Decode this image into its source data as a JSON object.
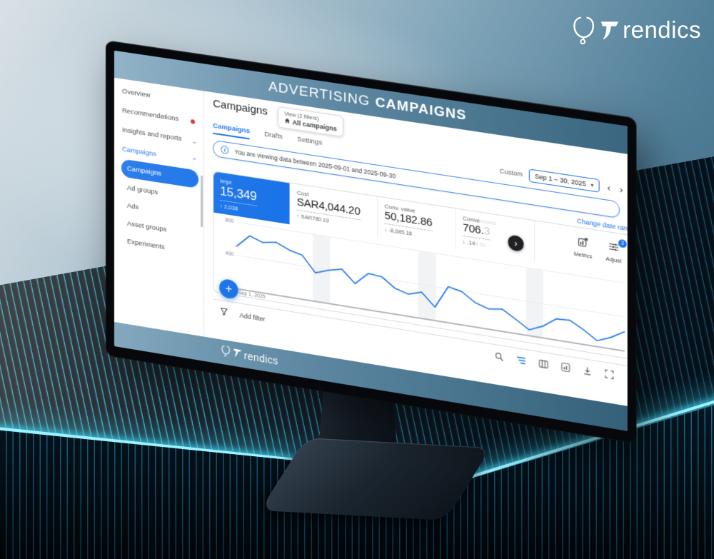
{
  "brand": {
    "name": "Trendics",
    "t": "T",
    "rest": "rendics"
  },
  "banner": {
    "title_light": "ADVERTISING",
    "title_bold": "CAMPAIGNS"
  },
  "sidebar": {
    "items": [
      {
        "label": "Overview"
      },
      {
        "label": "Recommendations"
      },
      {
        "label": "Insights and reports"
      },
      {
        "label": "Campaigns"
      }
    ],
    "subitems": [
      {
        "label": "Campaigns"
      },
      {
        "label": "Ad groups"
      },
      {
        "label": "Ads"
      },
      {
        "label": "Asset groups"
      },
      {
        "label": "Experiments"
      }
    ]
  },
  "main": {
    "page_title": "Campaigns",
    "view_selector": {
      "caption": "View (2 filters)",
      "value": "All campaigns"
    },
    "tabs": [
      {
        "label": "Campaigns"
      },
      {
        "label": "Drafts"
      },
      {
        "label": "Settings"
      }
    ],
    "date_controls": {
      "mode": "Custom",
      "range": "Sep 1 – 30, 2025"
    },
    "info_banner": "You are viewing data between 2025-09-01 and 2025-09-30",
    "change_date_link": "Change date range",
    "scorecards": {
      "impressions": {
        "label": "Impr.",
        "value": "15,349",
        "delta": "↑ 2,038"
      },
      "cost": {
        "label": "Cost",
        "value": "SAR4,044.20",
        "delta": "↑ SAR780.19"
      },
      "conv_value": {
        "label": "Conv. value",
        "value": "50,182.86",
        "delta": "↓ -8,085.16"
      },
      "conversions": {
        "label_visible": "Conve",
        "label_faded": "rsions",
        "value_visible": "706.",
        "value_faded": "3",
        "delta_visible": "↓ -14",
        "delta_faded": "4.61"
      }
    },
    "card_tools": {
      "metrics": "Metrics",
      "adjust": "Adjust",
      "adjust_badge": "3"
    },
    "filter_bar": {
      "add_filter": "Add filter"
    },
    "chart_x_label": "Sep 1, 2025"
  },
  "chart_data": {
    "type": "line",
    "title": "",
    "x_axis": {
      "start_label": "Sep 1, 2025"
    },
    "y_ticks": [
      0,
      400,
      800
    ],
    "ylim": [
      0,
      800
    ],
    "grid": true,
    "legend": false,
    "weekend_bands_pct": [
      [
        20,
        24.5
      ],
      [
        47.5,
        52
      ],
      [
        75,
        79.5
      ]
    ],
    "series": [
      {
        "name": "daily value",
        "color": "#1a73e8",
        "values": [
          505,
          655,
          600,
          628,
          560,
          522,
          335,
          392,
          430,
          282,
          428,
          415,
          302,
          256,
          306,
          152,
          422,
          388,
          282,
          232,
          256,
          162,
          62,
          130,
          242,
          252,
          166,
          62,
          126,
          218
        ]
      }
    ]
  },
  "icons": {
    "plus": "+",
    "caret_down": "▾",
    "chevron_left": "‹",
    "chevron_right": "›",
    "chevron_up": "⌃",
    "chevron_down": "⌄",
    "next": "›",
    "info": "i"
  },
  "colors": {
    "accent_blue": "#1a73e8",
    "glow_cyan": "#54dcf5",
    "banner_blue": "#4a768f",
    "alert_red": "#d93025"
  }
}
